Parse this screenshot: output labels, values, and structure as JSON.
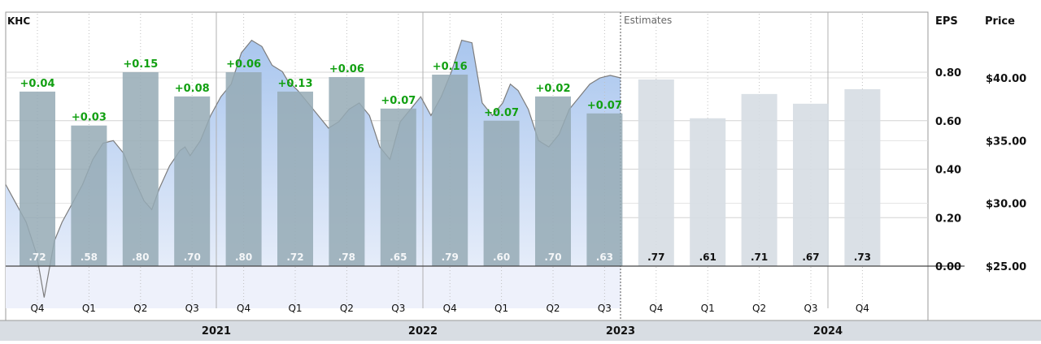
{
  "chart_data": {
    "type": "bar",
    "ticker": "KHC",
    "estimates_label": "Estimates",
    "eps_axis_label": "EPS",
    "price_axis_label": "Price",
    "eps_ticks": [
      "0.00",
      "0.20",
      "0.40",
      "0.60",
      "0.80"
    ],
    "eps_tick_values": [
      0.0,
      0.2,
      0.4,
      0.6,
      0.8
    ],
    "eps_range": [
      -0.4,
      1.0
    ],
    "price_ticks": [
      "$25.00",
      "$30.00",
      "$35.00",
      "$40.00"
    ],
    "price_tick_values": [
      25,
      30,
      35,
      40
    ],
    "price_range": [
      22.0,
      44.0
    ],
    "years": [
      "2021",
      "2022",
      "2023",
      "2024"
    ],
    "quarters": [
      {
        "label": "Q4",
        "eps": 0.72,
        "eps_label": ".72",
        "surprise": "+0.04",
        "estimate": false
      },
      {
        "label": "Q1",
        "eps": 0.58,
        "eps_label": ".58",
        "surprise": "+0.03",
        "estimate": false
      },
      {
        "label": "Q2",
        "eps": 0.8,
        "eps_label": ".80",
        "surprise": "+0.15",
        "estimate": false
      },
      {
        "label": "Q3",
        "eps": 0.7,
        "eps_label": ".70",
        "surprise": "+0.08",
        "estimate": false
      },
      {
        "label": "Q4",
        "eps": 0.8,
        "eps_label": ".80",
        "surprise": "+0.06",
        "estimate": false
      },
      {
        "label": "Q1",
        "eps": 0.72,
        "eps_label": ".72",
        "surprise": "+0.13",
        "estimate": false
      },
      {
        "label": "Q2",
        "eps": 0.78,
        "eps_label": ".78",
        "surprise": "+0.06",
        "estimate": false
      },
      {
        "label": "Q3",
        "eps": 0.65,
        "eps_label": ".65",
        "surprise": "+0.07",
        "estimate": false
      },
      {
        "label": "Q4",
        "eps": 0.79,
        "eps_label": ".79",
        "surprise": "+0.16",
        "estimate": false
      },
      {
        "label": "Q1",
        "eps": 0.6,
        "eps_label": ".60",
        "surprise": "+0.07",
        "estimate": false
      },
      {
        "label": "Q2",
        "eps": 0.7,
        "eps_label": ".70",
        "surprise": "+0.02",
        "estimate": false
      },
      {
        "label": "Q3",
        "eps": 0.63,
        "eps_label": ".63",
        "surprise": "+0.07",
        "estimate": false
      },
      {
        "label": "Q4",
        "eps": 0.77,
        "eps_label": ".77",
        "surprise": "",
        "estimate": true
      },
      {
        "label": "Q1",
        "eps": 0.61,
        "eps_label": ".61",
        "surprise": "",
        "estimate": true
      },
      {
        "label": "Q2",
        "eps": 0.71,
        "eps_label": ".71",
        "surprise": "",
        "estimate": true
      },
      {
        "label": "Q3",
        "eps": 0.67,
        "eps_label": ".67",
        "surprise": "",
        "estimate": true
      },
      {
        "label": "Q4",
        "eps": 0.73,
        "eps_label": ".73",
        "surprise": "",
        "estimate": true
      }
    ],
    "price_series": {
      "type": "line",
      "t": [
        0,
        0.2,
        0.4,
        0.6,
        0.75,
        0.95,
        1.1,
        1.3,
        1.5,
        1.7,
        1.9,
        2.1,
        2.3,
        2.5,
        2.7,
        2.85,
        3.0,
        3.2,
        3.4,
        3.5,
        3.6,
        3.8,
        4.0,
        4.2,
        4.4,
        4.6,
        4.8,
        5.0,
        5.2,
        5.4,
        5.5,
        5.7,
        5.9,
        6.1,
        6.3,
        6.5,
        6.7,
        6.9,
        7.1,
        7.3,
        7.5,
        7.7,
        7.9,
        8.1,
        8.3,
        8.5,
        8.7,
        8.9,
        9.1,
        9.3,
        9.5,
        9.7,
        9.85,
        10.0,
        10.2,
        10.4,
        10.6,
        10.8,
        11.0,
        11.2,
        11.4,
        11.6,
        11.8,
        12.0
      ],
      "price": [
        31.5,
        30.0,
        28.5,
        26.0,
        22.5,
        27.0,
        28.5,
        30.0,
        31.5,
        33.5,
        34.8,
        35.0,
        34.0,
        32.0,
        30.2,
        29.5,
        31.2,
        33.0,
        34.2,
        34.5,
        33.8,
        35.0,
        37.0,
        38.5,
        39.5,
        42.0,
        43.0,
        42.5,
        41.0,
        40.5,
        39.8,
        39.0,
        38.0,
        37.0,
        36.0,
        36.5,
        37.5,
        38.0,
        37.0,
        34.5,
        33.5,
        36.5,
        37.5,
        38.5,
        37.0,
        38.5,
        40.5,
        43.0,
        42.8,
        38.0,
        37.0,
        38.0,
        39.5,
        39.0,
        37.5,
        35.0,
        34.5,
        35.5,
        37.5,
        38.5,
        39.5,
        40.0,
        40.2,
        40.0
      ]
    }
  }
}
